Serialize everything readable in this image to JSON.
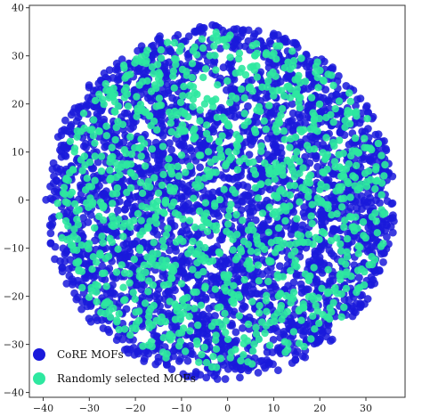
{
  "chart_data": {
    "type": "scatter",
    "title": "",
    "xlabel": "",
    "ylabel": "",
    "xlim": [
      -43,
      38.5
    ],
    "ylim": [
      -41,
      40.5
    ],
    "xticks": [
      -40,
      -30,
      -20,
      -10,
      0,
      10,
      20,
      30
    ],
    "yticks": [
      -40,
      -30,
      -20,
      -10,
      0,
      10,
      20,
      30,
      40
    ],
    "grid": false,
    "legend": "bottom-left",
    "series": [
      {
        "name": "CoRE MOFs",
        "color": "#1a1adb",
        "cloud": {
          "center": [
            -1.5,
            -0.5
          ],
          "radius_x": 38,
          "radius_y": 37,
          "count": 3200
        }
      },
      {
        "name": "Randomly selected MOFs",
        "color": "#2ee8a0",
        "cloud": {
          "center": [
            -1,
            0
          ],
          "radius_x": 36,
          "radius_y": 35,
          "count": 1100
        }
      }
    ]
  }
}
